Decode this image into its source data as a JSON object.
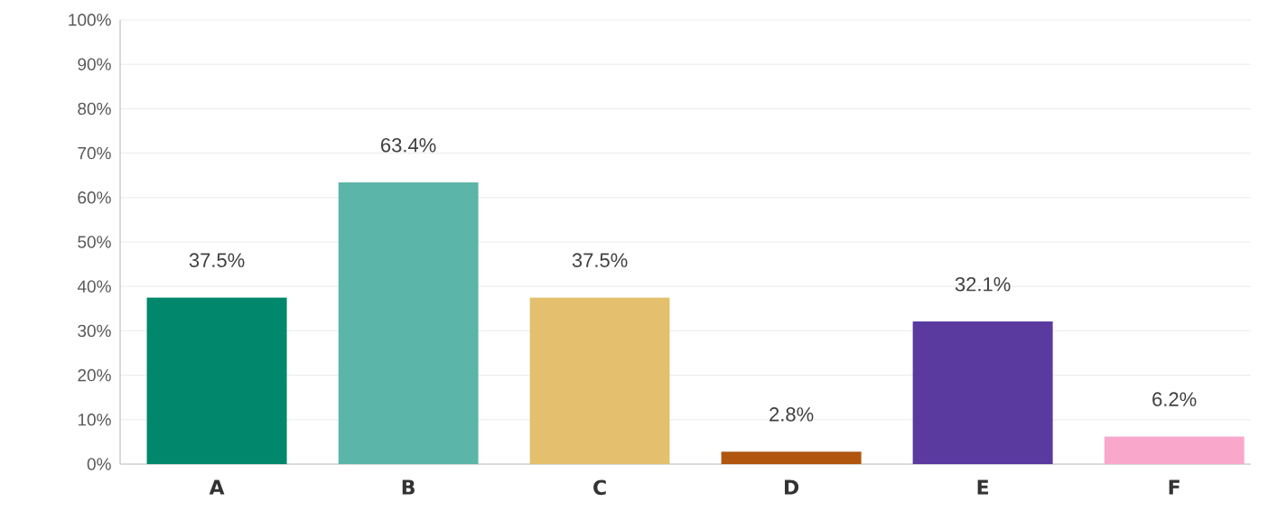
{
  "chart_data": {
    "type": "bar",
    "categories": [
      "A",
      "B",
      "C",
      "D",
      "E",
      "F"
    ],
    "values": [
      37.5,
      63.4,
      37.5,
      2.8,
      32.1,
      6.2
    ],
    "colors": [
      "#00876c",
      "#5bb5a9",
      "#e3bf6e",
      "#b0560f",
      "#5b3aa0",
      "#f9a8cc"
    ],
    "value_labels": [
      "37.5%",
      "63.4%",
      "37.5%",
      "2.8%",
      "32.1%",
      "6.2%"
    ],
    "ylim": [
      0,
      100
    ],
    "yticks": [
      {
        "value": 0,
        "label": "0%"
      },
      {
        "value": 10,
        "label": "10%"
      },
      {
        "value": 20,
        "label": "20%"
      },
      {
        "value": 30,
        "label": "30%"
      },
      {
        "value": 40,
        "label": "40%"
      },
      {
        "value": 50,
        "label": "50%"
      },
      {
        "value": 60,
        "label": "60%"
      },
      {
        "value": 70,
        "label": "70%"
      },
      {
        "value": 80,
        "label": "80%"
      },
      {
        "value": 90,
        "label": "90%"
      },
      {
        "value": 100,
        "label": "100%"
      }
    ],
    "grid": "y"
  }
}
